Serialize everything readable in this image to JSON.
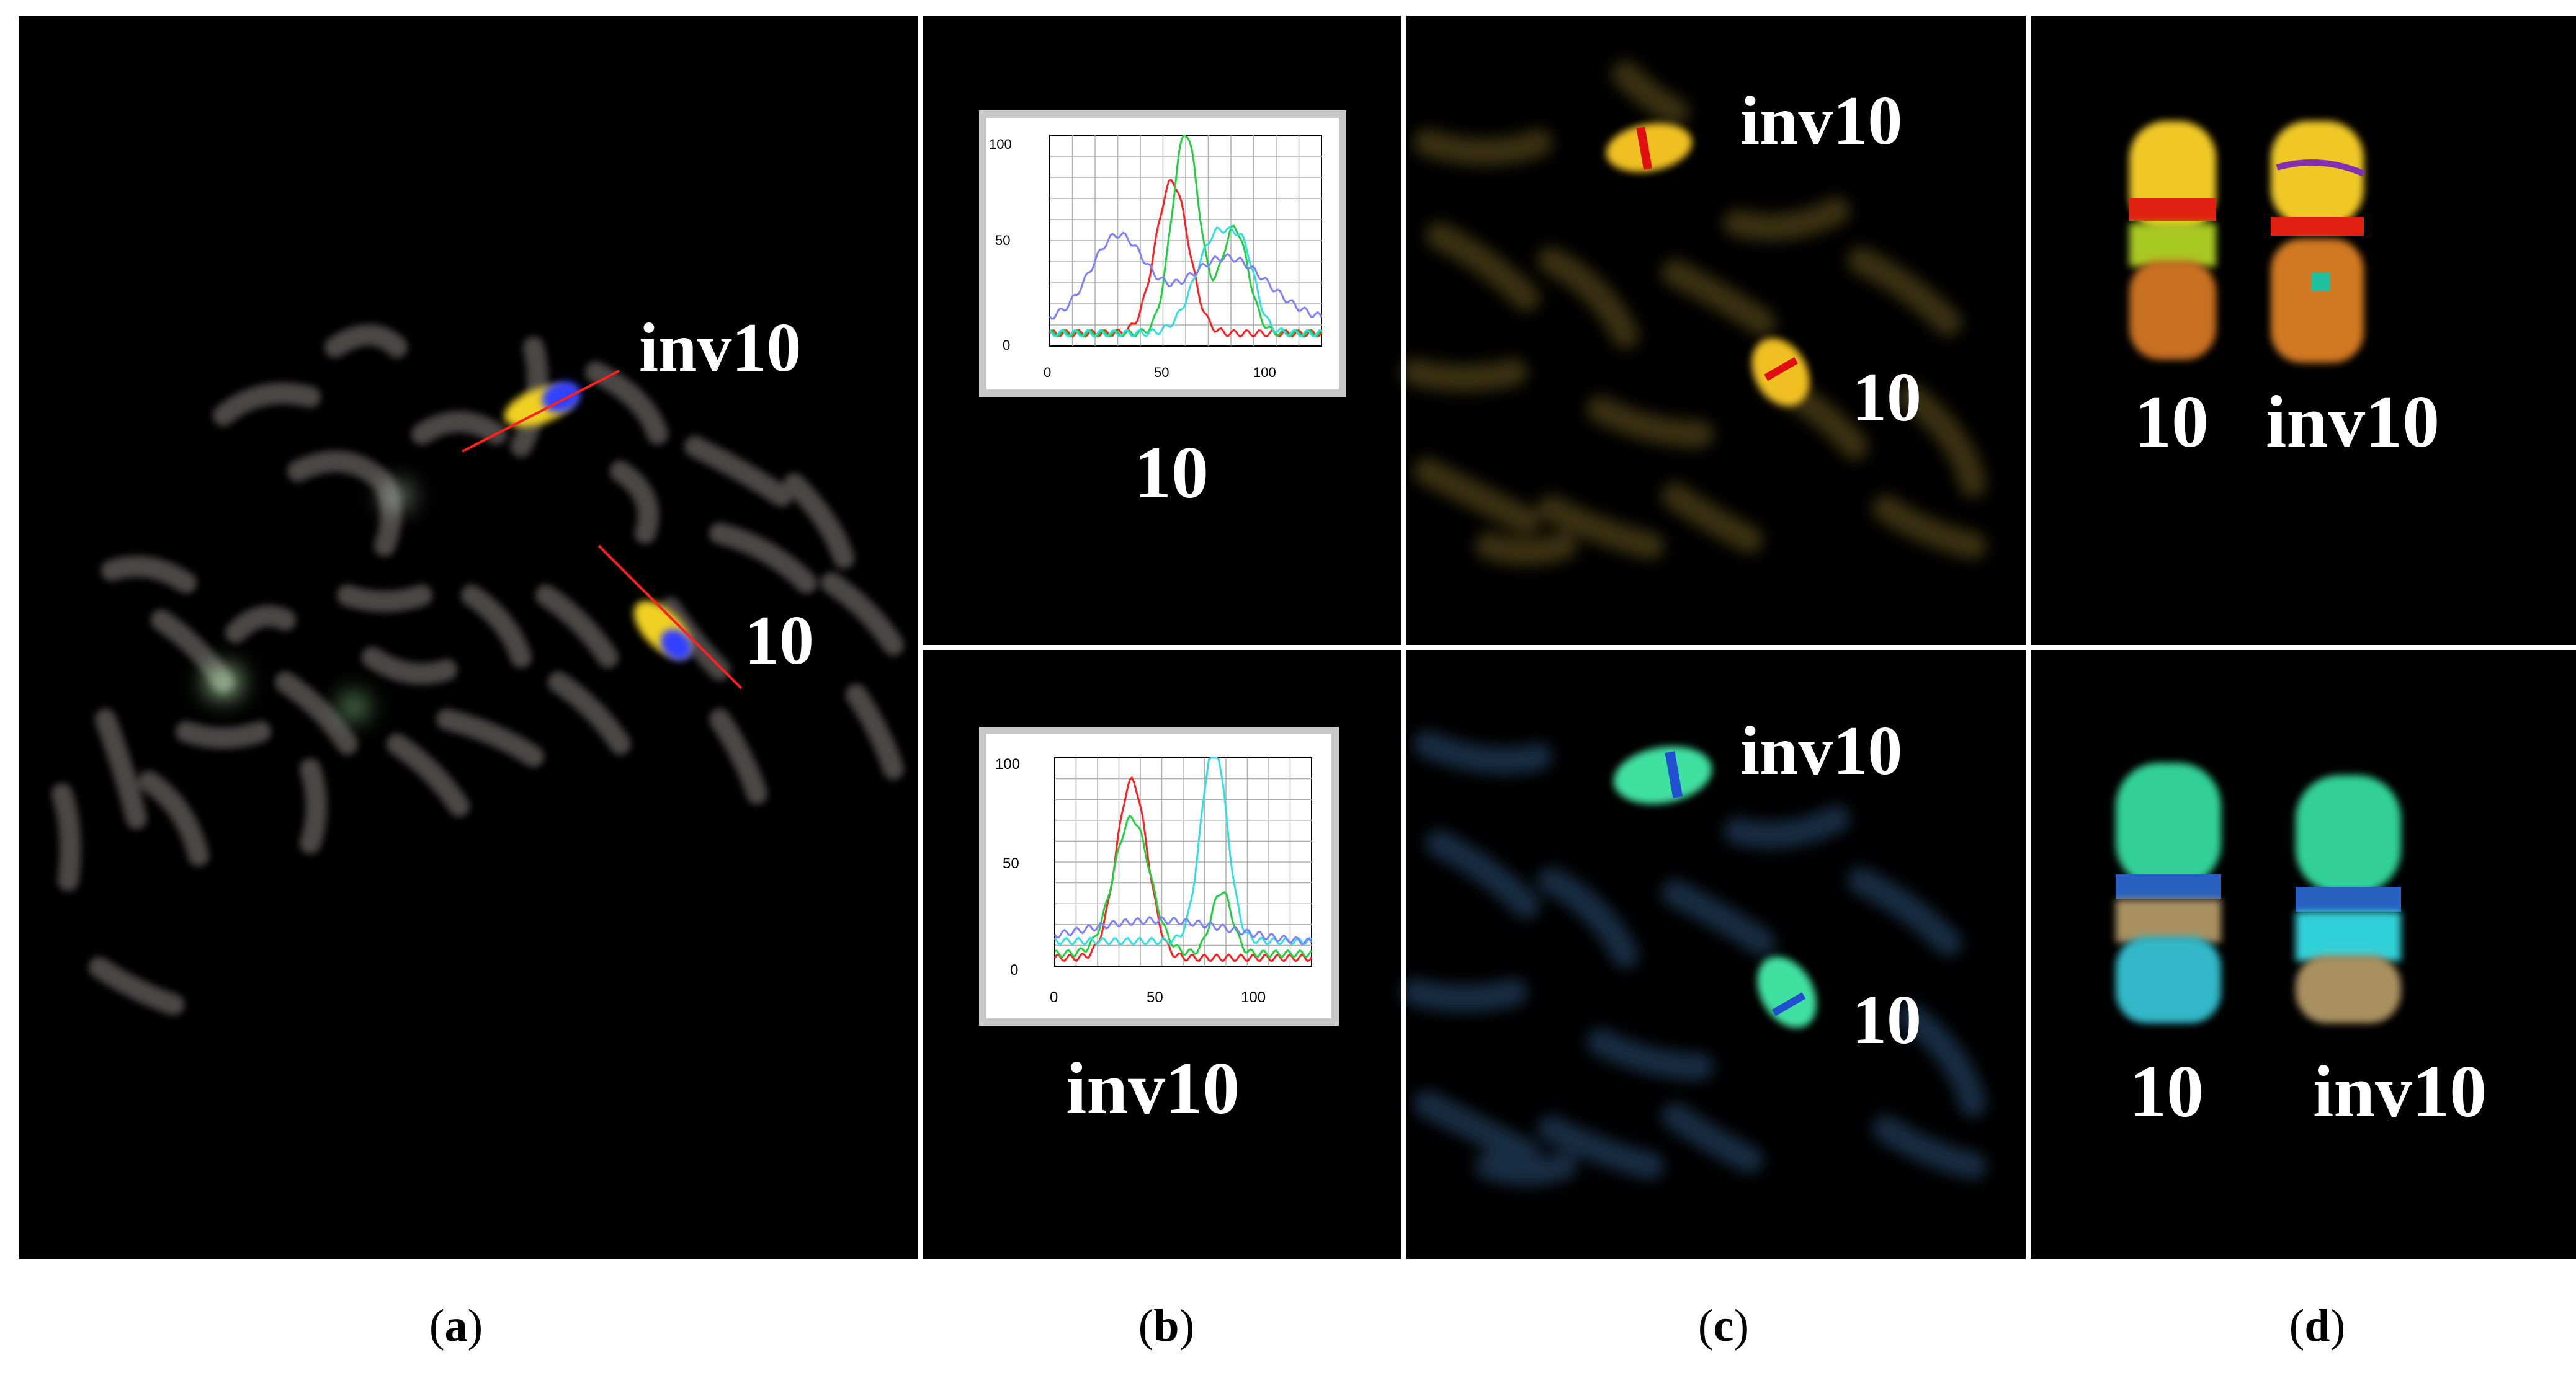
{
  "figure": {
    "panel_letters": [
      "a",
      "b",
      "c",
      "d"
    ],
    "paren_open": "(",
    "paren_close": ")"
  },
  "panel_a": {
    "labels": {
      "inv": "inv10",
      "normal": "10"
    }
  },
  "panel_b": {
    "top": {
      "label": "10",
      "plot": {
        "yticks": [
          "0",
          "50",
          "100"
        ],
        "xticks": [
          "0",
          "50",
          "100"
        ],
        "series_colors": [
          "#ff2020",
          "#20d040",
          "#30e0e0",
          "#8080ff"
        ]
      }
    },
    "bottom": {
      "label": "inv10",
      "plot": {
        "yticks": [
          "0",
          "50",
          "100"
        ],
        "xticks": [
          "0",
          "50",
          "100"
        ],
        "series_colors": [
          "#ff2020",
          "#20d040",
          "#30e0e0",
          "#8080ff"
        ]
      }
    }
  },
  "panel_c": {
    "top": {
      "labels": {
        "inv": "inv10",
        "normal": "10"
      }
    },
    "bottom": {
      "labels": {
        "inv": "inv10",
        "normal": "10"
      }
    }
  },
  "panel_d": {
    "top": {
      "labels": {
        "normal": "10",
        "inv": "inv10"
      }
    },
    "bottom": {
      "labels": {
        "normal": "10",
        "inv": "inv10"
      }
    }
  }
}
